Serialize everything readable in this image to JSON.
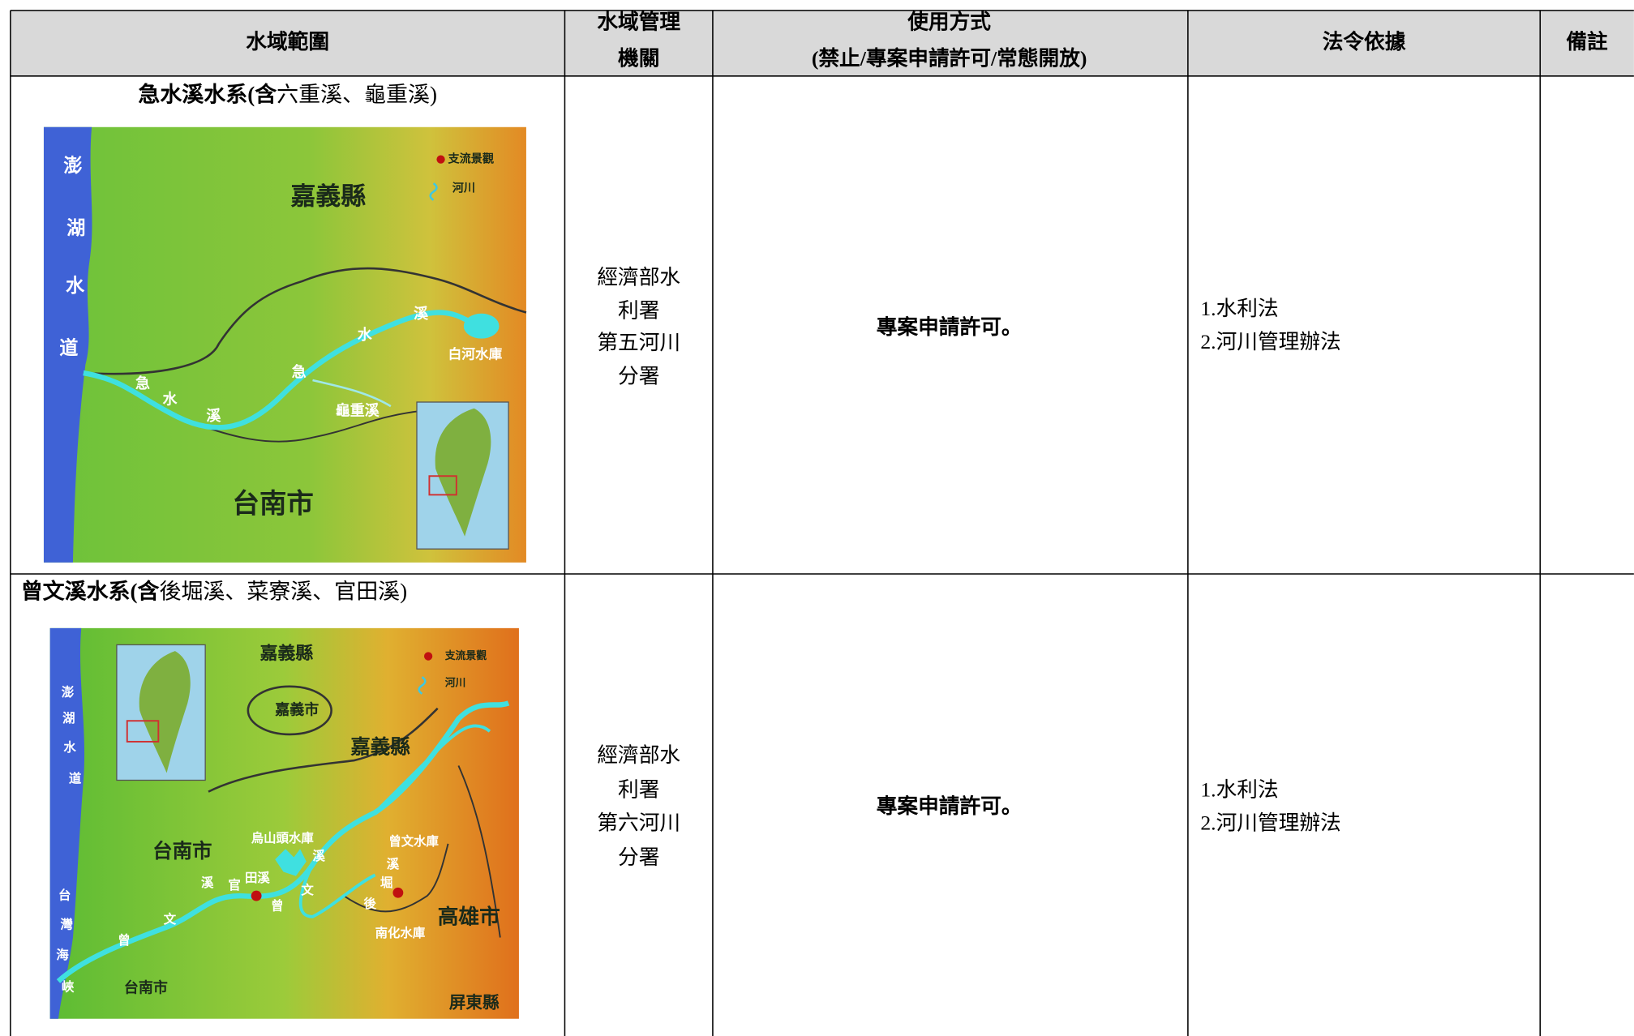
{
  "table": {
    "headers": [
      [
        "水域範圍"
      ],
      [
        "水域管理",
        "機關"
      ],
      [
        "使用方式",
        "(禁止/專案申請許可/常態開放)"
      ],
      [
        "法令依據"
      ],
      [
        "備註"
      ]
    ],
    "rows": [
      {
        "title_bold": "急水溪水系(含",
        "title_rest": "六重溪、龜重溪)",
        "map_labels": [
          "澎",
          "湖",
          "水",
          "道",
          "嘉義縣",
          "支流景觀",
          "河川",
          "白河水庫",
          "溪",
          "水",
          "急",
          "急",
          "水",
          "溪",
          "龜重溪",
          "台南市"
        ],
        "agency": [
          "經濟部水",
          "利署",
          "第五河川",
          "分署"
        ],
        "usage": "專案申請許可。",
        "law": [
          "1.水利法",
          "2.河川管理辦法"
        ]
      },
      {
        "title_bold": "曾文溪水系(含",
        "title_rest": "後堀溪、菜寮溪、官田溪)",
        "map_labels": [
          "嘉義縣",
          "嘉義市",
          "支流景觀",
          "河川",
          "嘉義縣",
          "澎",
          "湖",
          "水",
          "道",
          "台南市",
          "烏山頭水庫",
          "曾文水庫",
          "溪",
          "文",
          "溪",
          "堀",
          "後",
          "官",
          "田溪",
          "溪",
          "文",
          "曾",
          "曾",
          "南化水庫",
          "高雄市",
          "台",
          "灣",
          "海",
          "峽",
          "台南市",
          "屏東縣"
        ],
        "agency": [
          "經濟部水",
          "利署",
          "第六河川",
          "分署"
        ],
        "usage": "專案申請許可。",
        "law": [
          "1.水利法",
          "2.河川管理辦法"
        ]
      }
    ]
  }
}
